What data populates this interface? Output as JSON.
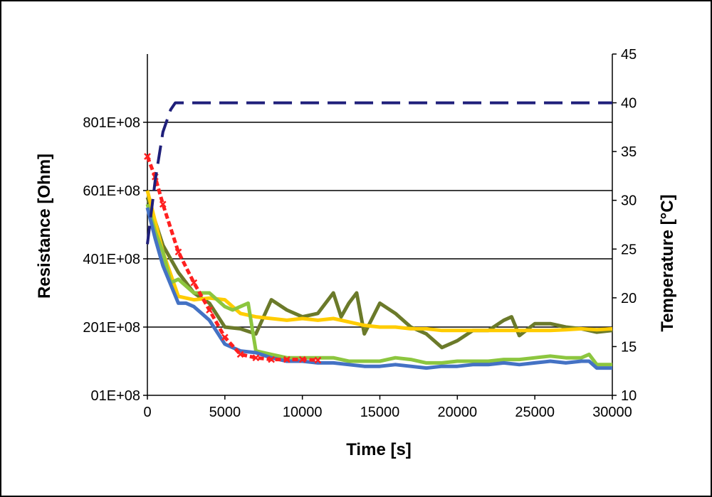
{
  "chart_data": {
    "type": "line",
    "title": "",
    "xlabel": "Time [s]",
    "ylabel_left": "Resistance [Ohm]",
    "ylabel_right": "Temperature [°C]",
    "xlim": [
      0,
      30000
    ],
    "ylim_left": [
      0,
      1000000000
    ],
    "ylim_right": [
      10,
      45
    ],
    "x_ticks": [
      0,
      5000,
      10000,
      15000,
      20000,
      25000,
      30000
    ],
    "x_tick_labels": [
      "0",
      "5000",
      "10000",
      "15000",
      "20000",
      "25000",
      "30000"
    ],
    "y_left_ticks": [
      0,
      200000000,
      400000000,
      600000000,
      800000000
    ],
    "y_left_tick_labels": [
      "01E+08",
      "201E+08",
      "401E+08",
      "601E+08",
      "801E+08"
    ],
    "y_right_ticks": [
      10,
      15,
      20,
      25,
      30,
      35,
      40,
      45
    ],
    "y_right_tick_labels": [
      "10",
      "15",
      "20",
      "25",
      "30",
      "35",
      "40",
      "45"
    ],
    "grid": "horizontal",
    "legend": "none",
    "series": [
      {
        "axis": "left",
        "color": "#6b7a2a",
        "style": "solid",
        "x": [
          0,
          1000,
          2000,
          3000,
          4000,
          5000,
          6000,
          7000,
          8000,
          9000,
          10000,
          11000,
          12000,
          12500,
          13000,
          13500,
          14000,
          15000,
          16000,
          17000,
          18000,
          19000,
          20000,
          21000,
          22000,
          23000,
          23500,
          24000,
          25000,
          26000,
          27000,
          28000,
          29000,
          30000
        ],
        "values": [
          580000000,
          440000000,
          360000000,
          300000000,
          270000000,
          200000000,
          195000000,
          180000000,
          280000000,
          250000000,
          230000000,
          240000000,
          300000000,
          230000000,
          270000000,
          300000000,
          180000000,
          270000000,
          240000000,
          200000000,
          180000000,
          140000000,
          160000000,
          190000000,
          190000000,
          220000000,
          230000000,
          175000000,
          210000000,
          210000000,
          200000000,
          195000000,
          185000000,
          190000000
        ]
      },
      {
        "axis": "left",
        "color": "#ffcc00",
        "style": "solid",
        "x": [
          0,
          1000,
          2000,
          3000,
          4000,
          5000,
          6000,
          7000,
          8000,
          9000,
          10000,
          11000,
          12000,
          13000,
          14000,
          15000,
          16000,
          17000,
          18000,
          19000,
          20000,
          21000,
          22000,
          23000,
          24000,
          25000,
          26000,
          27000,
          28000,
          29000,
          30000
        ],
        "values": [
          600000000,
          420000000,
          290000000,
          280000000,
          285000000,
          280000000,
          240000000,
          230000000,
          225000000,
          220000000,
          225000000,
          220000000,
          225000000,
          215000000,
          205000000,
          200000000,
          200000000,
          195000000,
          195000000,
          190000000,
          190000000,
          190000000,
          190000000,
          190000000,
          190000000,
          190000000,
          190000000,
          192000000,
          195000000,
          192000000,
          195000000
        ]
      },
      {
        "axis": "left",
        "color": "#8cc63f",
        "style": "solid",
        "x": [
          0,
          500,
          1000,
          1500,
          2000,
          3000,
          4000,
          5000,
          5500,
          6000,
          6500,
          7000,
          8000,
          9000,
          10000,
          11000,
          11500,
          12000,
          13000,
          14000,
          15000,
          16000,
          17000,
          18000,
          19000,
          20000,
          21000,
          22000,
          23000,
          24000,
          25000,
          26000,
          27000,
          28000,
          28500,
          29000,
          30000
        ],
        "values": [
          560000000,
          480000000,
          420000000,
          330000000,
          340000000,
          300000000,
          300000000,
          260000000,
          250000000,
          260000000,
          270000000,
          130000000,
          120000000,
          110000000,
          110000000,
          110000000,
          110000000,
          110000000,
          100000000,
          100000000,
          100000000,
          110000000,
          105000000,
          95000000,
          95000000,
          100000000,
          100000000,
          100000000,
          105000000,
          105000000,
          110000000,
          115000000,
          110000000,
          110000000,
          120000000,
          90000000,
          90000000
        ]
      },
      {
        "axis": "left",
        "color": "#4472c4",
        "style": "solid",
        "x": [
          0,
          500,
          1000,
          2000,
          2500,
          3000,
          3500,
          4000,
          5000,
          6000,
          7000,
          8000,
          9000,
          10000,
          11000,
          12000,
          13000,
          14000,
          15000,
          16000,
          17000,
          18000,
          19000,
          20000,
          21000,
          22000,
          23000,
          24000,
          25000,
          26000,
          27000,
          28000,
          28500,
          29000,
          30000
        ],
        "values": [
          550000000,
          460000000,
          380000000,
          270000000,
          270000000,
          260000000,
          240000000,
          220000000,
          150000000,
          130000000,
          125000000,
          110000000,
          100000000,
          100000000,
          95000000,
          95000000,
          90000000,
          85000000,
          85000000,
          90000000,
          85000000,
          80000000,
          85000000,
          85000000,
          90000000,
          90000000,
          95000000,
          90000000,
          95000000,
          100000000,
          95000000,
          100000000,
          100000000,
          80000000,
          80000000
        ]
      },
      {
        "axis": "left",
        "color": "#ff2020",
        "style": "dotted-marker",
        "x": [
          0,
          500,
          1000,
          2000,
          3000,
          4000,
          5000,
          6000,
          7000,
          8000,
          9000,
          10000,
          11000
        ],
        "values": [
          700000000,
          640000000,
          560000000,
          420000000,
          330000000,
          250000000,
          170000000,
          120000000,
          110000000,
          105000000,
          105000000,
          105000000,
          103000000
        ]
      },
      {
        "axis": "right",
        "color": "#1f1f7a",
        "style": "dashed",
        "x": [
          0,
          500,
          1000,
          1500,
          1800,
          3000,
          5000,
          10000,
          15000,
          20000,
          25000,
          30000
        ],
        "values": [
          25.5,
          32,
          37,
          39.3,
          40,
          40,
          40,
          40,
          40,
          40,
          40,
          40
        ]
      }
    ]
  }
}
